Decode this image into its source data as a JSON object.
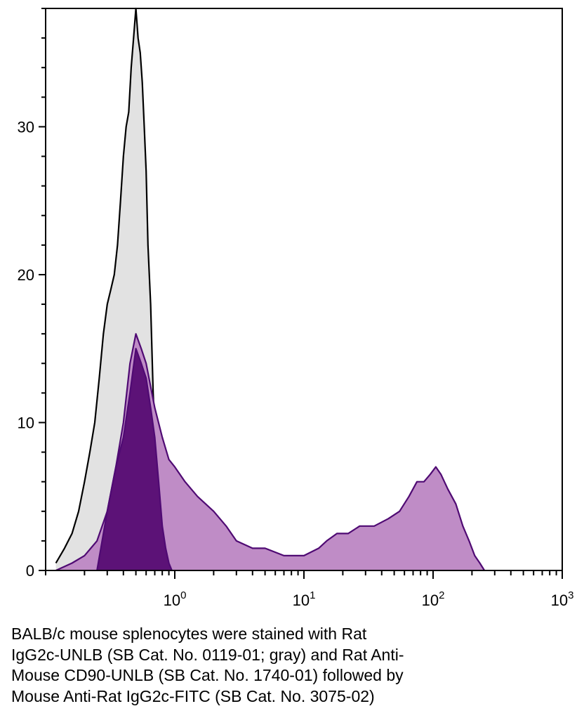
{
  "chart_data": {
    "type": "area",
    "x_scale": "log",
    "xlim": [
      0.1,
      1000
    ],
    "ylim": [
      0,
      38
    ],
    "x_ticks": [
      {
        "value": 1,
        "base": "10",
        "exp": "0"
      },
      {
        "value": 10,
        "base": "10",
        "exp": "1"
      },
      {
        "value": 100,
        "base": "10",
        "exp": "2"
      },
      {
        "value": 1000,
        "base": "10",
        "exp": "3"
      }
    ],
    "y_ticks": [
      {
        "value": 0,
        "label": "0"
      },
      {
        "value": 10,
        "label": "10"
      },
      {
        "value": 20,
        "label": "20"
      },
      {
        "value": 30,
        "label": "30"
      }
    ],
    "series": [
      {
        "fill": "#e2e2e2",
        "stroke": "#000000",
        "x": [
          0.12,
          0.14,
          0.16,
          0.18,
          0.2,
          0.22,
          0.24,
          0.26,
          0.28,
          0.3,
          0.32,
          0.34,
          0.36,
          0.38,
          0.4,
          0.42,
          0.44,
          0.46,
          0.48,
          0.5,
          0.52,
          0.54,
          0.56,
          0.58,
          0.6,
          0.62,
          0.65,
          0.68,
          0.72,
          0.76,
          0.8,
          0.85,
          0.9
        ],
        "y": [
          0.5,
          1.5,
          2.5,
          4,
          6,
          8,
          10,
          13,
          16,
          18,
          19,
          20,
          22,
          25,
          28,
          30,
          31,
          34,
          36,
          38,
          36,
          35,
          33,
          30,
          27,
          22,
          18,
          12,
          7,
          4,
          2,
          1,
          0
        ]
      },
      {
        "fill": "#bf8cc6",
        "stroke": "#4f0a73",
        "x": [
          0.12,
          0.16,
          0.2,
          0.25,
          0.3,
          0.35,
          0.4,
          0.45,
          0.5,
          0.55,
          0.6,
          0.7,
          0.8,
          0.9,
          1.0,
          1.2,
          1.5,
          2,
          2.5,
          3,
          4,
          5,
          7,
          10,
          13,
          15,
          18,
          22,
          27,
          35,
          45,
          55,
          65,
          75,
          85,
          95,
          105,
          115,
          130,
          150,
          170,
          190,
          210,
          230,
          250
        ],
        "y": [
          0,
          0.5,
          1,
          2,
          4,
          7,
          10,
          14,
          16,
          15,
          14,
          11,
          9,
          7.5,
          7,
          6,
          5,
          4,
          3,
          2,
          1.5,
          1.5,
          1,
          1,
          1.5,
          2,
          2.5,
          2.5,
          3,
          3,
          3.5,
          4,
          5,
          6,
          6,
          6.5,
          7,
          6.5,
          5.5,
          4.5,
          3,
          2,
          1,
          0.5,
          0
        ]
      },
      {
        "fill": "#5c1277",
        "stroke": "#4f0a73",
        "x": [
          0.25,
          0.3,
          0.35,
          0.4,
          0.45,
          0.5,
          0.55,
          0.6,
          0.65,
          0.7,
          0.75,
          0.8,
          0.85,
          0.9,
          0.95
        ],
        "y": [
          0,
          4,
          7,
          9,
          12,
          15,
          14,
          13,
          11,
          9,
          6,
          3,
          1.5,
          0.5,
          0
        ]
      }
    ]
  },
  "caption_lines": [
    "BALB/c mouse splenocytes were stained with Rat",
    "IgG2c-UNLB (SB Cat. No. 0119-01; gray) and  Rat Anti-",
    "Mouse CD90-UNLB (SB Cat. No. 1740-01) followed by",
    "Mouse Anti-Rat IgG2c-FITC (SB Cat. No. 3075-02)"
  ]
}
